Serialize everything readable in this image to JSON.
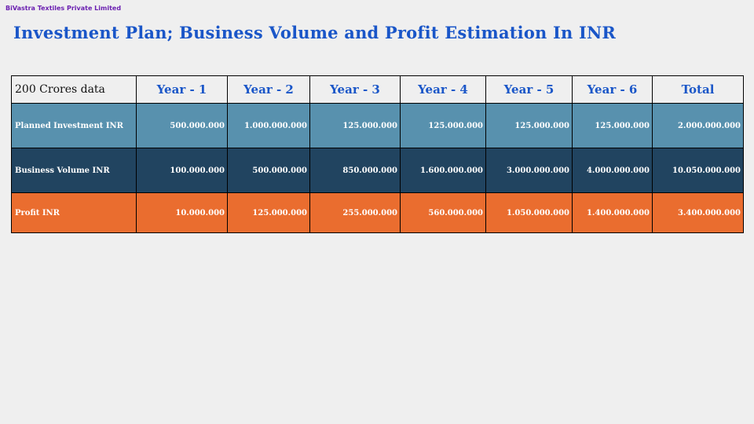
{
  "company": "BiVastra Textiles Private Limited",
  "title": "Investment Plan; Business Volume and Profit Estimation In INR",
  "table": {
    "corner": "200 Crores data",
    "headers": [
      "Year - 1",
      "Year - 2",
      "Year - 3",
      "Year - 4",
      "Year - 5",
      "Year - 6",
      "Total"
    ],
    "rows": [
      {
        "label": "Planned Investment INR",
        "color": "#5891ae",
        "values": [
          "500.000.000",
          "1.000.000.000",
          "125.000.000",
          "125.000.000",
          "125.000.000",
          "125.000.000",
          "2.000.000.000"
        ]
      },
      {
        "label": "Business Volume INR",
        "color": "#214460",
        "values": [
          "100.000.000",
          "500.000.000",
          "850.000.000",
          "1.600.000.000",
          "3.000.000.000",
          "4.000.000.000",
          "10.050.000.000"
        ]
      },
      {
        "label": "Profit INR",
        "color": "#ea6d2f",
        "values": [
          "10.000.000",
          "125.000.000",
          "255.000.000",
          "560.000.000",
          "1.050.000.000",
          "1.400.000.000",
          "3.400.000.000"
        ]
      }
    ]
  }
}
